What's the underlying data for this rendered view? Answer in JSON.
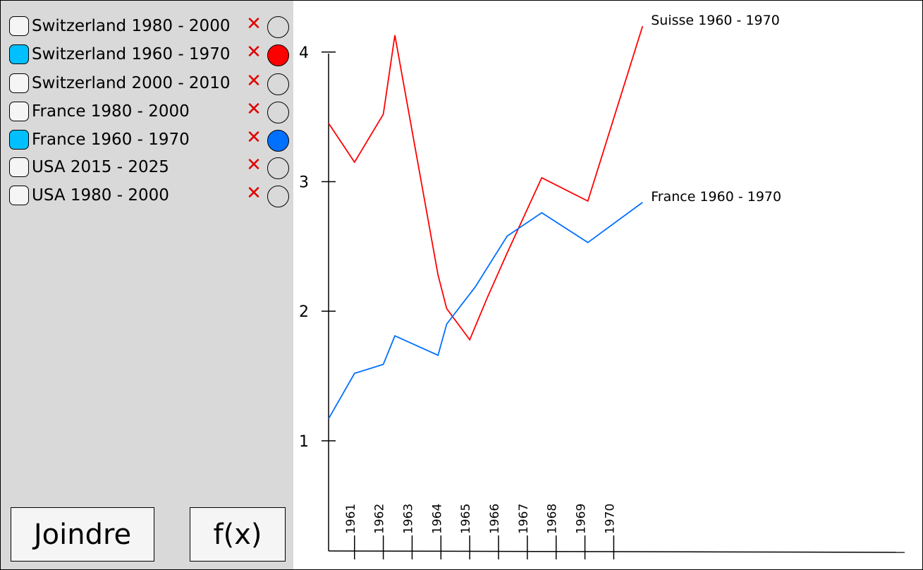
{
  "datasets": [
    {
      "label": "Switzerland 1980 - 2000",
      "checked": false,
      "color": null
    },
    {
      "label": "Switzerland 1960 - 1970",
      "checked": true,
      "color": "#ff0000"
    },
    {
      "label": "Switzerland 2000 - 2010",
      "checked": false,
      "color": null
    },
    {
      "label": "France 1980 - 2000",
      "checked": false,
      "color": null
    },
    {
      "label": "France 1960 - 1970",
      "checked": true,
      "color": "#0070ff"
    },
    {
      "label": "USA 2015 - 2025",
      "checked": false,
      "color": null
    },
    {
      "label": "USA 1980 - 2000",
      "checked": false,
      "color": null
    }
  ],
  "delete_glyph": "✕",
  "buttons": {
    "join": "Joindre",
    "fx": "f(x)"
  },
  "chart_data": {
    "type": "line",
    "x_ticks": [
      "1961",
      "1962",
      "1963",
      "1964",
      "1965",
      "1966",
      "1967",
      "1968",
      "1969",
      "1970"
    ],
    "y_ticks": [
      "1",
      "2",
      "3",
      "4"
    ],
    "xlim": [
      1960.0,
      1980.0
    ],
    "ylim": [
      0.15,
      4.38
    ],
    "series": [
      {
        "name": "Suisse 1960 - 1970",
        "color": "#ff0000",
        "points": [
          [
            1960.0,
            3.45
          ],
          [
            1960.9,
            3.15
          ],
          [
            1961.9,
            3.52
          ],
          [
            1962.3,
            4.13
          ],
          [
            1963.8,
            2.28
          ],
          [
            1964.1,
            2.02
          ],
          [
            1964.9,
            1.78
          ],
          [
            1965.5,
            2.1
          ],
          [
            1966.2,
            2.45
          ],
          [
            1967.4,
            3.03
          ],
          [
            1969.0,
            2.85
          ],
          [
            1970.9,
            4.2
          ]
        ]
      },
      {
        "name": "France 1960 - 1970",
        "color": "#0070ff",
        "points": [
          [
            1960.0,
            1.17
          ],
          [
            1960.9,
            1.52
          ],
          [
            1961.9,
            1.59
          ],
          [
            1962.3,
            1.81
          ],
          [
            1963.8,
            1.66
          ],
          [
            1964.1,
            1.9
          ],
          [
            1964.2,
            1.93
          ],
          [
            1965.1,
            2.19
          ],
          [
            1966.2,
            2.58
          ],
          [
            1967.4,
            2.76
          ],
          [
            1969.0,
            2.53
          ],
          [
            1970.9,
            2.84
          ]
        ]
      }
    ]
  }
}
